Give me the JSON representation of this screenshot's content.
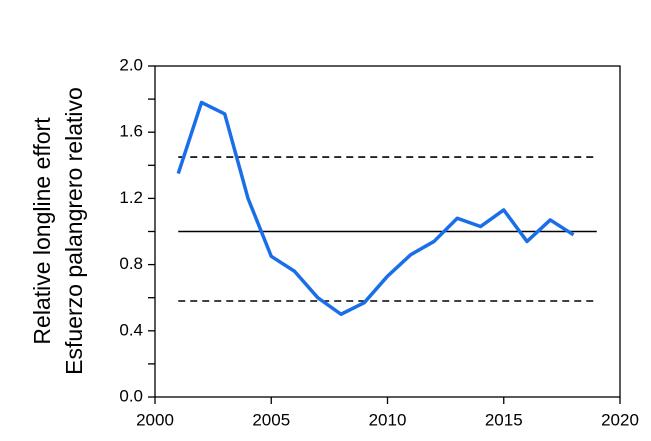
{
  "chart_data": {
    "type": "line",
    "y_label": [
      "Relative longline effort",
      "Esfuerzo palangrero relativo"
    ],
    "x": [
      2001,
      2002,
      2003,
      2004,
      2005,
      2006,
      2007,
      2008,
      2009,
      2010,
      2011,
      2012,
      2013,
      2014,
      2015,
      2016,
      2017,
      2018
    ],
    "series": [
      {
        "color": "#1a6fe8",
        "values": [
          1.35,
          1.78,
          1.71,
          1.2,
          0.85,
          0.76,
          0.6,
          0.5,
          0.57,
          0.73,
          0.86,
          0.94,
          1.08,
          1.03,
          1.13,
          0.94,
          1.07,
          0.98
        ]
      }
    ],
    "reference_lines": [
      {
        "y": 1.45,
        "style": "dashed",
        "xrange": [
          2001,
          2019
        ]
      },
      {
        "y": 1.0,
        "style": "solid",
        "xrange": [
          2001,
          2019
        ]
      },
      {
        "y": 0.58,
        "style": "dashed",
        "xrange": [
          2001,
          2019
        ]
      }
    ],
    "xlim": [
      2000,
      2020
    ],
    "xticks": [
      2000,
      2005,
      2010,
      2015,
      2020
    ],
    "ylim": [
      0,
      2
    ],
    "yticks": [
      {
        "value": 0,
        "label": "0.0"
      },
      {
        "value": 0.4,
        "label": "0.4"
      },
      {
        "value": 0.8,
        "label": "0.8"
      },
      {
        "value": 1.2,
        "label": "1.2"
      },
      {
        "value": 1.6,
        "label": "1.6"
      },
      {
        "value": 2,
        "label": "2.0"
      }
    ],
    "yminorticks": [
      0.2,
      0.6,
      1.0,
      1.4,
      1.8
    ],
    "grid": false
  }
}
